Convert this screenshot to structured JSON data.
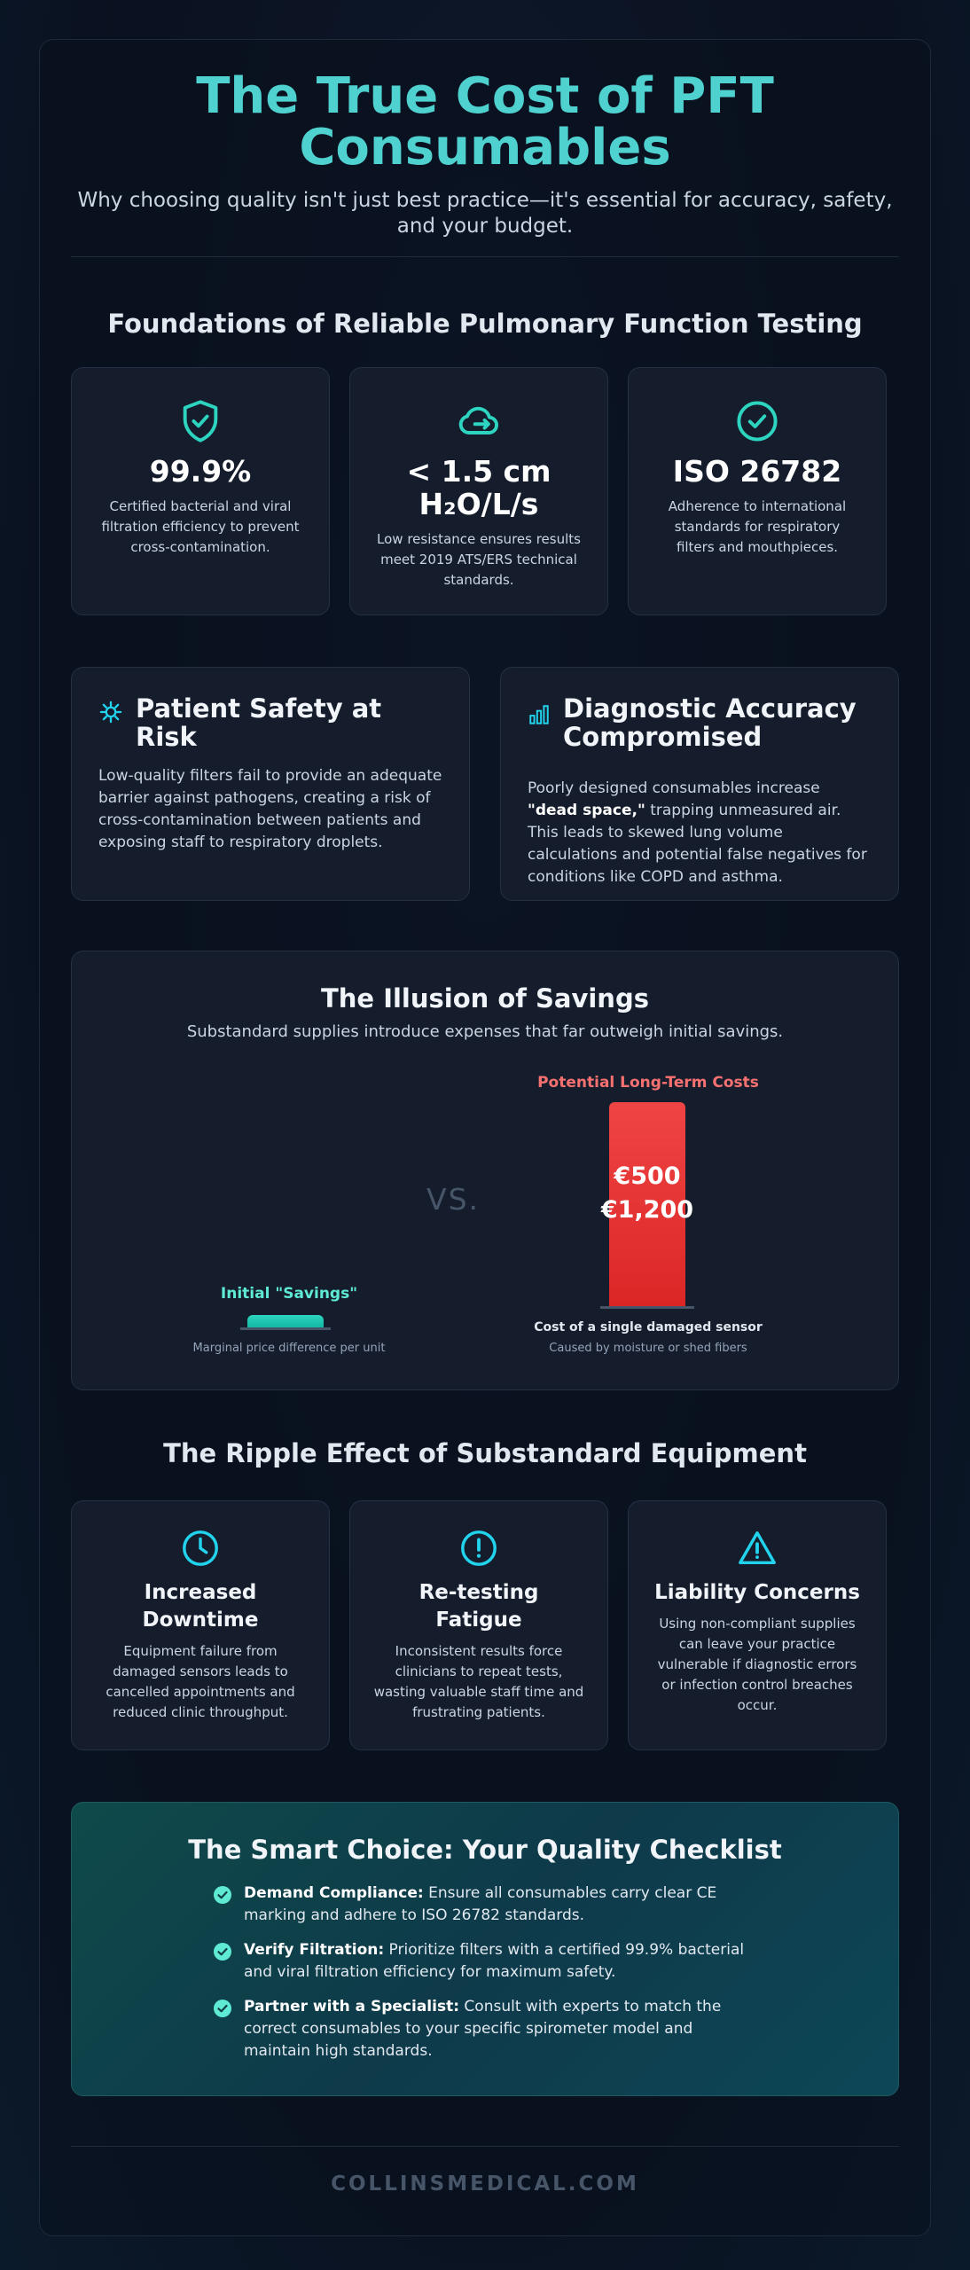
{
  "header": {
    "title": "The True Cost of PFT Consumables",
    "subtitle": "Why choosing quality isn't just best practice—it's essential for accuracy, safety, and your budget."
  },
  "foundations": {
    "title": "Foundations of Reliable Pulmonary Function Testing",
    "stats": [
      {
        "icon": "shield-check-icon",
        "value": "99.9%",
        "desc": "Certified bacterial and viral filtration efficiency to prevent cross-contamination."
      },
      {
        "icon": "cloud-arrow-icon",
        "value": "< 1.5 cm H₂O/L/s",
        "desc": "Low resistance ensures results meet 2019 ATS/ERS technical standards."
      },
      {
        "icon": "check-circle-icon",
        "value": "ISO 26782",
        "desc": "Adherence to international standards for respiratory filters and mouthpieces."
      }
    ]
  },
  "risks": [
    {
      "icon": "virus-icon",
      "title": "Patient Safety at Risk",
      "body_parts": [
        "Low-quality filters fail to provide an adequate barrier against pathogens, creating a risk of cross-contamination between patients and exposing staff to respiratory droplets."
      ]
    },
    {
      "icon": "bar-chart-icon",
      "title": "Diagnostic Accuracy Compromised",
      "body_pre": "Poorly designed consumables increase ",
      "body_bold": "\"dead space,\"",
      "body_post": " trapping unmeasured air. This leads to skewed lung volume calculations and potential false negatives for conditions like COPD and asthma."
    }
  ],
  "savings": {
    "title": "The Illusion of Savings",
    "subtitle": "Substandard supplies introduce expenses that far outweigh initial savings.",
    "vs": "VS.",
    "left": {
      "label": "Initial \"Savings\"",
      "caption": "Marginal price difference per unit",
      "color": "#2dd4bf"
    },
    "right": {
      "label": "Potential Long-Term Costs",
      "value_top": "€500",
      "value_sep": "-",
      "value_bottom": "€1,200",
      "caption_bold": "Cost of a single damaged sensor",
      "caption": "Caused by moisture or shed fibers",
      "color": "#ef4444"
    }
  },
  "ripple": {
    "title": "The Ripple Effect of Substandard Equipment",
    "items": [
      {
        "icon": "clock-icon",
        "title": "Increased Downtime",
        "desc": "Equipment failure from damaged sensors leads to cancelled appointments and reduced clinic throughput."
      },
      {
        "icon": "exclamation-circle-icon",
        "title": "Re-testing Fatigue",
        "desc": "Inconsistent results force clinicians to repeat tests, wasting valuable staff time and frustrating patients."
      },
      {
        "icon": "warning-triangle-icon",
        "title": "Liability Concerns",
        "desc": "Using non-compliant supplies can leave your practice vulnerable if diagnostic errors or infection control breaches occur."
      }
    ]
  },
  "checklist": {
    "title": "The Smart Choice: Your Quality Checklist",
    "items": [
      {
        "bold": "Demand Compliance:",
        "text": " Ensure all consumables carry clear CE marking and adhere to ISO 26782 standards."
      },
      {
        "bold": "Verify Filtration:",
        "text": " Prioritize filters with a certified 99.9% bacterial and viral filtration efficiency for maximum safety."
      },
      {
        "bold": "Partner with a Specialist:",
        "text": " Consult with experts to match the correct consumables to your specific spirometer model and maintain high standards."
      }
    ]
  },
  "footer": {
    "text": "COLLINSMEDICAL.COM"
  },
  "colors": {
    "accent": "#4fd1d0",
    "teal": "#2dd4bf",
    "danger": "#ef4444",
    "danger_label": "#f87171"
  }
}
